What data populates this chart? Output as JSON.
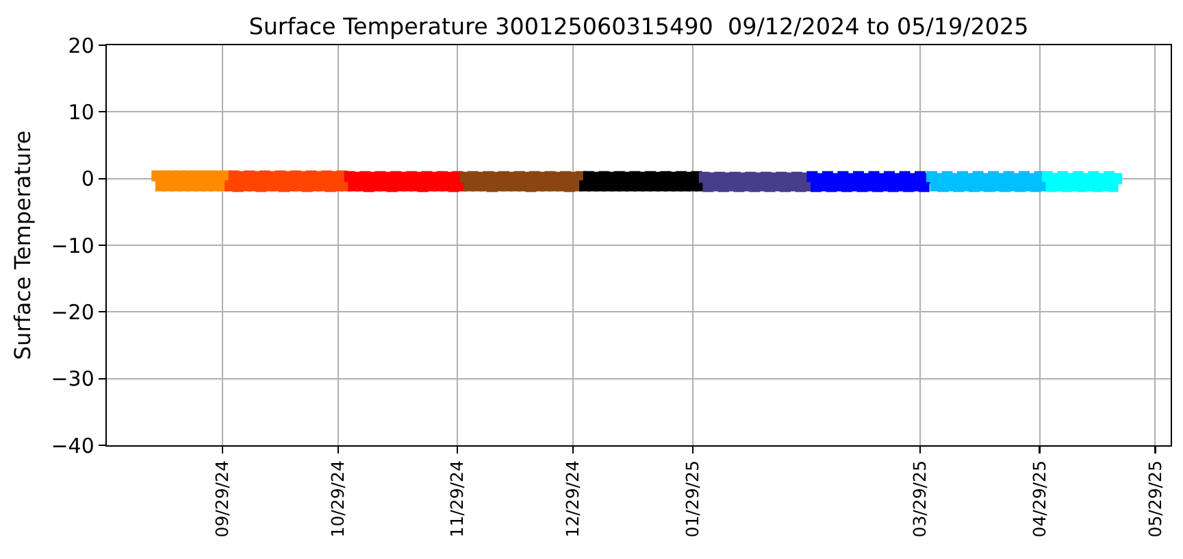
{
  "chart_data": {
    "type": "scatter",
    "title": "Surface Temperature 300125060315490  09/12/2024 to 05/19/2025",
    "ylabel": "Surface Temperature",
    "xlim": [
      "2024-08-30",
      "2025-06-02"
    ],
    "ylim": [
      -40,
      20
    ],
    "xticks": [
      {
        "value": "2024-09-29",
        "label": "09/29/24"
      },
      {
        "value": "2024-10-29",
        "label": "10/29/24"
      },
      {
        "value": "2024-11-29",
        "label": "11/29/24"
      },
      {
        "value": "2024-12-29",
        "label": "12/29/24"
      },
      {
        "value": "2025-01-29",
        "label": "01/29/25"
      },
      {
        "value": "2025-03-29",
        "label": "03/29/25"
      },
      {
        "value": "2025-04-29",
        "label": "04/29/25"
      },
      {
        "value": "2025-05-29",
        "label": "05/29/25"
      }
    ],
    "yticks": [
      -40,
      -30,
      -20,
      -10,
      0,
      10,
      20
    ],
    "grid": true,
    "marker": "square",
    "series": [
      {
        "color": "#ff8c00",
        "x": [
          "2024-09-12",
          "2024-09-13",
          "2024-09-14",
          "2024-09-15",
          "2024-09-16",
          "2024-09-17",
          "2024-09-18",
          "2024-09-19",
          "2024-09-20",
          "2024-09-21",
          "2024-09-22",
          "2024-09-23",
          "2024-09-24",
          "2024-09-25",
          "2024-09-26",
          "2024-09-27",
          "2024-09-28",
          "2024-09-29",
          "2024-09-30"
        ],
        "values": [
          0.4,
          -1.1,
          0.4,
          -1.1,
          0.4,
          -1.1,
          0.4,
          -1.1,
          0.4,
          -1.1,
          0.4,
          -1.1,
          0.4,
          -1.1,
          0.4,
          -1.1,
          0.4,
          -1.1,
          0.4
        ]
      },
      {
        "color": "#ff4500",
        "x": [
          "2024-10-01",
          "2024-10-02",
          "2024-10-03",
          "2024-10-04",
          "2024-10-05",
          "2024-10-06",
          "2024-10-07",
          "2024-10-08",
          "2024-10-09",
          "2024-10-10",
          "2024-10-11",
          "2024-10-12",
          "2024-10-13",
          "2024-10-14",
          "2024-10-15",
          "2024-10-16",
          "2024-10-17",
          "2024-10-18",
          "2024-10-19",
          "2024-10-20",
          "2024-10-21",
          "2024-10-22",
          "2024-10-23",
          "2024-10-24",
          "2024-10-25",
          "2024-10-26",
          "2024-10-27",
          "2024-10-28",
          "2024-10-29",
          "2024-10-30",
          "2024-10-31"
        ],
        "values": [
          -1.1,
          0.4,
          -1.2,
          0.3,
          -1.1,
          0.4,
          -1.1,
          0.3,
          -1.2,
          0.4,
          -1.1,
          0.3,
          -1.1,
          0.4,
          -1.2,
          0.3,
          -1.1,
          0.4,
          -1.1,
          0.3,
          -1.2,
          0.4,
          -1.1,
          0.3,
          -1.1,
          0.4,
          -1.2,
          0.3,
          -1.1,
          0.4,
          -1.1
        ]
      },
      {
        "color": "#ff0000",
        "x": [
          "2024-11-01",
          "2024-11-02",
          "2024-11-03",
          "2024-11-04",
          "2024-11-05",
          "2024-11-06",
          "2024-11-07",
          "2024-11-08",
          "2024-11-09",
          "2024-11-10",
          "2024-11-11",
          "2024-11-12",
          "2024-11-13",
          "2024-11-14",
          "2024-11-15",
          "2024-11-16",
          "2024-11-17",
          "2024-11-18",
          "2024-11-19",
          "2024-11-20",
          "2024-11-21",
          "2024-11-22",
          "2024-11-23",
          "2024-11-24",
          "2024-11-25",
          "2024-11-26",
          "2024-11-27",
          "2024-11-28",
          "2024-11-29",
          "2024-11-30"
        ],
        "values": [
          0.3,
          -1.1,
          0.2,
          -1.1,
          0.3,
          -1.2,
          0.2,
          -1.1,
          0.3,
          -1.1,
          0.2,
          -1.2,
          0.3,
          -1.1,
          0.2,
          -1.1,
          0.3,
          -1.1,
          0.2,
          -1.2,
          0.3,
          -1.1,
          0.2,
          -1.1,
          0.3,
          -1.1,
          0.2,
          -1.2,
          0.3,
          -1.1
        ]
      },
      {
        "color": "#8b4513",
        "x": [
          "2024-12-01",
          "2024-12-02",
          "2024-12-03",
          "2024-12-04",
          "2024-12-05",
          "2024-12-06",
          "2024-12-07",
          "2024-12-08",
          "2024-12-09",
          "2024-12-10",
          "2024-12-11",
          "2024-12-12",
          "2024-12-13",
          "2024-12-14",
          "2024-12-15",
          "2024-12-16",
          "2024-12-17",
          "2024-12-18",
          "2024-12-19",
          "2024-12-20",
          "2024-12-21",
          "2024-12-22",
          "2024-12-23",
          "2024-12-24",
          "2024-12-25",
          "2024-12-26",
          "2024-12-27",
          "2024-12-28",
          "2024-12-29",
          "2024-12-30",
          "2024-12-31"
        ],
        "values": [
          0.2,
          -1.1,
          0.3,
          -1.1,
          0.2,
          -1.1,
          0.3,
          -1.2,
          0.2,
          -1.1,
          0.3,
          -1.1,
          0.2,
          -1.1,
          0.3,
          -1.1,
          0.2,
          -1.2,
          0.3,
          -1.1,
          0.2,
          -1.1,
          0.3,
          -1.1,
          0.2,
          -1.1,
          0.3,
          -1.2,
          0.2,
          -1.1,
          0.3
        ]
      },
      {
        "color": "#000000",
        "x": [
          "2025-01-01",
          "2025-01-02",
          "2025-01-03",
          "2025-01-04",
          "2025-01-05",
          "2025-01-06",
          "2025-01-07",
          "2025-01-08",
          "2025-01-09",
          "2025-01-10",
          "2025-01-11",
          "2025-01-12",
          "2025-01-13",
          "2025-01-14",
          "2025-01-15",
          "2025-01-16",
          "2025-01-17",
          "2025-01-18",
          "2025-01-19",
          "2025-01-20",
          "2025-01-21",
          "2025-01-22",
          "2025-01-23",
          "2025-01-24",
          "2025-01-25",
          "2025-01-26",
          "2025-01-27",
          "2025-01-28",
          "2025-01-29",
          "2025-01-30",
          "2025-01-31"
        ],
        "values": [
          -1.1,
          0.3,
          -1.1,
          0.2,
          -1.1,
          0.3,
          -1.1,
          0.2,
          -1.1,
          0.3,
          -1.1,
          0.2,
          -1.1,
          0.3,
          -1.1,
          0.2,
          -1.1,
          0.3,
          -1.1,
          0.2,
          -1.1,
          0.3,
          -1.1,
          0.2,
          -1.1,
          0.3,
          -1.1,
          0.2,
          -1.1,
          0.3,
          -1.1
        ]
      },
      {
        "color": "#483d8b",
        "x": [
          "2025-02-01",
          "2025-02-02",
          "2025-02-03",
          "2025-02-04",
          "2025-02-05",
          "2025-02-06",
          "2025-02-07",
          "2025-02-08",
          "2025-02-09",
          "2025-02-10",
          "2025-02-11",
          "2025-02-12",
          "2025-02-13",
          "2025-02-14",
          "2025-02-15",
          "2025-02-16",
          "2025-02-17",
          "2025-02-18",
          "2025-02-19",
          "2025-02-20",
          "2025-02-21",
          "2025-02-22",
          "2025-02-23",
          "2025-02-24",
          "2025-02-25",
          "2025-02-26",
          "2025-02-27",
          "2025-02-28"
        ],
        "values": [
          0.2,
          -1.2,
          0.1,
          -1.1,
          0.2,
          -1.2,
          0.1,
          -1.1,
          0.2,
          -1.2,
          0.1,
          -1.1,
          0.2,
          -1.2,
          0.1,
          -1.1,
          0.2,
          -1.2,
          0.1,
          -1.1,
          0.2,
          -1.2,
          0.1,
          -1.1,
          0.2,
          -1.2,
          0.1,
          -1.1
        ]
      },
      {
        "color": "#0000ff",
        "x": [
          "2025-03-01",
          "2025-03-02",
          "2025-03-03",
          "2025-03-04",
          "2025-03-05",
          "2025-03-06",
          "2025-03-07",
          "2025-03-08",
          "2025-03-09",
          "2025-03-10",
          "2025-03-11",
          "2025-03-12",
          "2025-03-13",
          "2025-03-14",
          "2025-03-15",
          "2025-03-16",
          "2025-03-17",
          "2025-03-18",
          "2025-03-19",
          "2025-03-20",
          "2025-03-21",
          "2025-03-22",
          "2025-03-23",
          "2025-03-24",
          "2025-03-25",
          "2025-03-26",
          "2025-03-27",
          "2025-03-28",
          "2025-03-29",
          "2025-03-30",
          "2025-03-31"
        ],
        "values": [
          0.3,
          -1.2,
          0.0,
          -1.1,
          0.3,
          -1.2,
          0.0,
          -1.1,
          0.3,
          -1.2,
          0.0,
          -1.1,
          0.3,
          -1.2,
          0.0,
          -1.1,
          0.3,
          -1.2,
          0.0,
          -1.1,
          0.3,
          -1.2,
          0.0,
          -1.1,
          0.3,
          -1.2,
          0.0,
          -1.1,
          0.3,
          -1.2,
          0.0
        ]
      },
      {
        "color": "#00bfff",
        "x": [
          "2025-04-01",
          "2025-04-02",
          "2025-04-03",
          "2025-04-04",
          "2025-04-05",
          "2025-04-06",
          "2025-04-07",
          "2025-04-08",
          "2025-04-09",
          "2025-04-10",
          "2025-04-11",
          "2025-04-12",
          "2025-04-13",
          "2025-04-14",
          "2025-04-15",
          "2025-04-16",
          "2025-04-17",
          "2025-04-18",
          "2025-04-19",
          "2025-04-20",
          "2025-04-21",
          "2025-04-22",
          "2025-04-23",
          "2025-04-24",
          "2025-04-25",
          "2025-04-26",
          "2025-04-27",
          "2025-04-28",
          "2025-04-29",
          "2025-04-30"
        ],
        "values": [
          0.3,
          -1.1,
          0.0,
          -1.2,
          0.3,
          -1.1,
          0.0,
          -1.2,
          0.3,
          -1.1,
          0.0,
          -1.2,
          0.3,
          -1.1,
          0.0,
          -1.2,
          0.3,
          -1.1,
          0.0,
          -1.2,
          0.3,
          -1.1,
          0.0,
          -1.2,
          0.3,
          -1.1,
          0.0,
          -1.2,
          0.3,
          -1.1
        ]
      },
      {
        "color": "#00ffff",
        "x": [
          "2025-05-01",
          "2025-05-02",
          "2025-05-03",
          "2025-05-04",
          "2025-05-05",
          "2025-05-06",
          "2025-05-07",
          "2025-05-08",
          "2025-05-09",
          "2025-05-10",
          "2025-05-11",
          "2025-05-12",
          "2025-05-13",
          "2025-05-14",
          "2025-05-15",
          "2025-05-16",
          "2025-05-17",
          "2025-05-18",
          "2025-05-19"
        ],
        "values": [
          0.3,
          -1.2,
          0.0,
          -1.1,
          0.3,
          -1.2,
          0.0,
          -1.1,
          0.3,
          -1.2,
          0.0,
          -1.1,
          0.3,
          -1.2,
          0.0,
          -1.1,
          0.3,
          -1.2,
          0.0
        ]
      }
    ]
  }
}
